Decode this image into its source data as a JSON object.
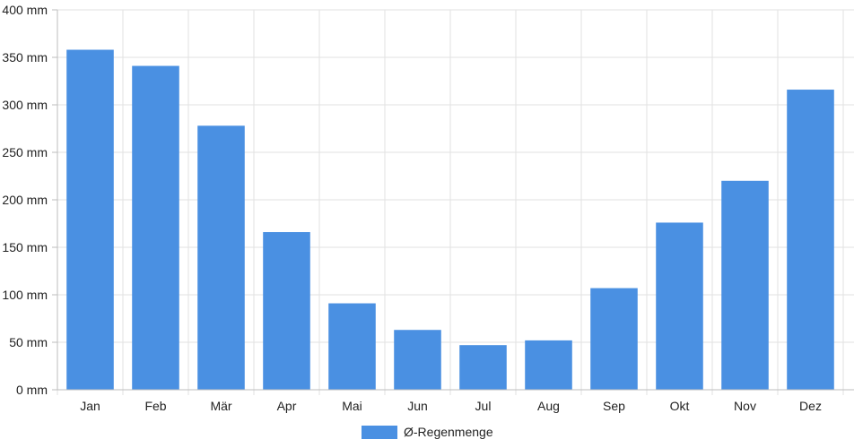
{
  "chart_data": {
    "type": "bar",
    "categories": [
      "Jan",
      "Feb",
      "Mär",
      "Apr",
      "Mai",
      "Jun",
      "Jul",
      "Aug",
      "Sep",
      "Okt",
      "Nov",
      "Dez"
    ],
    "series": [
      {
        "name": "Ø-Regenmenge",
        "values": [
          358,
          341,
          278,
          166,
          91,
          63,
          47,
          52,
          107,
          176,
          220,
          316
        ],
        "color": "#4a90e2"
      }
    ],
    "ylim": [
      0,
      400
    ],
    "yticks": [
      0,
      50,
      100,
      150,
      200,
      250,
      300,
      350,
      400
    ],
    "yunit": "mm",
    "grid": true,
    "legend_position": "bottom-center"
  }
}
